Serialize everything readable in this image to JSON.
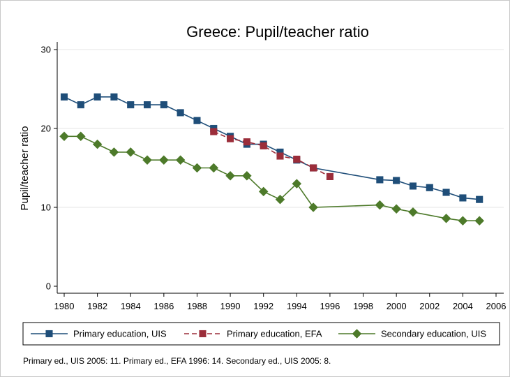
{
  "chart_data": {
    "type": "line",
    "title": "Greece: Pupil/teacher ratio",
    "xlabel": "",
    "ylabel": "Pupil/teacher ratio",
    "xlim": [
      1980,
      2006
    ],
    "ylim": [
      0,
      30
    ],
    "x_ticks": [
      1980,
      1982,
      1984,
      1986,
      1988,
      1990,
      1992,
      1994,
      1996,
      1998,
      2000,
      2002,
      2004,
      2006
    ],
    "y_ticks": [
      0,
      10,
      20,
      30
    ],
    "grid": "horizontal",
    "legend_position": "bottom",
    "series": [
      {
        "name": "Primary education, UIS",
        "color": "#1f4e79",
        "marker": "square",
        "line_style": "solid",
        "points": [
          [
            1980,
            24
          ],
          [
            1981,
            23
          ],
          [
            1982,
            24
          ],
          [
            1983,
            24
          ],
          [
            1984,
            23
          ],
          [
            1985,
            23
          ],
          [
            1986,
            23
          ],
          [
            1987,
            22
          ],
          [
            1988,
            21
          ],
          [
            1989,
            20
          ],
          [
            1990,
            19
          ],
          [
            1991,
            18
          ],
          [
            1992,
            18
          ],
          [
            1993,
            17
          ],
          [
            1994,
            16
          ],
          [
            1995,
            15
          ],
          [
            1999,
            13.5
          ],
          [
            2000,
            13.4
          ],
          [
            2001,
            12.7
          ],
          [
            2002,
            12.5
          ],
          [
            2003,
            11.9
          ],
          [
            2004,
            11.2
          ],
          [
            2005,
            11
          ]
        ]
      },
      {
        "name": "Primary education, EFA",
        "color": "#9b2d3a",
        "marker": "square",
        "line_style": "dashed",
        "points": [
          [
            1989,
            19.6
          ],
          [
            1990,
            18.7
          ],
          [
            1991,
            18.3
          ],
          [
            1992,
            17.8
          ],
          [
            1993,
            16.5
          ],
          [
            1994,
            16.1
          ],
          [
            1995,
            15
          ],
          [
            1996,
            13.9
          ]
        ]
      },
      {
        "name": "Secondary education, UIS",
        "color": "#4d7a2a",
        "marker": "diamond",
        "line_style": "solid",
        "points": [
          [
            1980,
            19
          ],
          [
            1981,
            19
          ],
          [
            1982,
            18
          ],
          [
            1983,
            17
          ],
          [
            1984,
            17
          ],
          [
            1985,
            16
          ],
          [
            1986,
            16
          ],
          [
            1987,
            16
          ],
          [
            1988,
            15
          ],
          [
            1989,
            15
          ],
          [
            1990,
            14
          ],
          [
            1991,
            14
          ],
          [
            1992,
            12
          ],
          [
            1993,
            11
          ],
          [
            1994,
            13
          ],
          [
            1995,
            10
          ],
          [
            1999,
            10.3
          ],
          [
            2000,
            9.8
          ],
          [
            2001,
            9.4
          ],
          [
            2003,
            8.6
          ],
          [
            2004,
            8.3
          ],
          [
            2005,
            8.3
          ]
        ]
      }
    ],
    "note": "Primary ed., UIS 2005: 11. Primary ed., EFA 1996: 14. Secondary ed., UIS 2005: 8."
  }
}
